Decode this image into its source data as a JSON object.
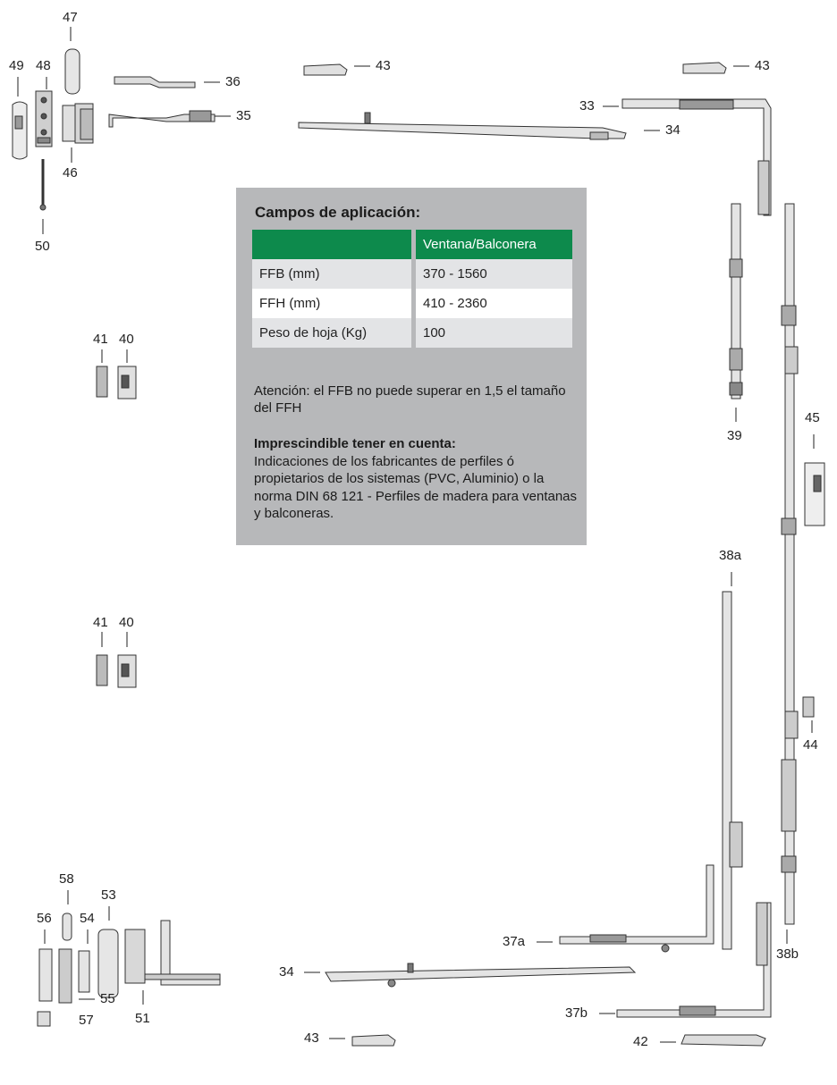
{
  "panel": {
    "title": "Campos de aplicación:",
    "table": {
      "header": [
        "",
        "Ventana/Balconera"
      ],
      "rows": [
        [
          "FFB (mm)",
          "370 - 1560"
        ],
        [
          "FFH (mm)",
          "410 - 2360"
        ],
        [
          "Peso de hoja (Kg)",
          "100"
        ]
      ]
    },
    "note": "Atención: el FFB no puede superar en 1,5 el tamaño del FFH",
    "important_title": "Imprescindible tener en cuenta:",
    "important_text": "Indicaciones de los fabricantes de perfiles ó propietarios de los sistemas (PVC, Aluminio) o la norma DIN 68 121 - Perfiles de madera para ventanas y balconeras."
  },
  "callouts": {
    "c47": "47",
    "c48": "48",
    "c49": "49",
    "c46": "46",
    "c50": "50",
    "c36": "36",
    "c35": "35",
    "c43a": "43",
    "c43b": "43",
    "c43c": "43",
    "c33": "33",
    "c34a": "34",
    "c34b": "34",
    "c41a": "41",
    "c40a": "40",
    "c41b": "41",
    "c40b": "40",
    "c39": "39",
    "c45": "45",
    "c38a": "38a",
    "c38b": "38b",
    "c44": "44",
    "c58": "58",
    "c56": "56",
    "c54": "54",
    "c53": "53",
    "c55": "55",
    "c57": "57",
    "c51": "51",
    "c37a": "37a",
    "c37b": "37b",
    "c42": "42"
  },
  "colors": {
    "panel_bg": "#b7b8ba",
    "header_green": "#0d8a4c",
    "row_grey": "#e3e4e6"
  }
}
